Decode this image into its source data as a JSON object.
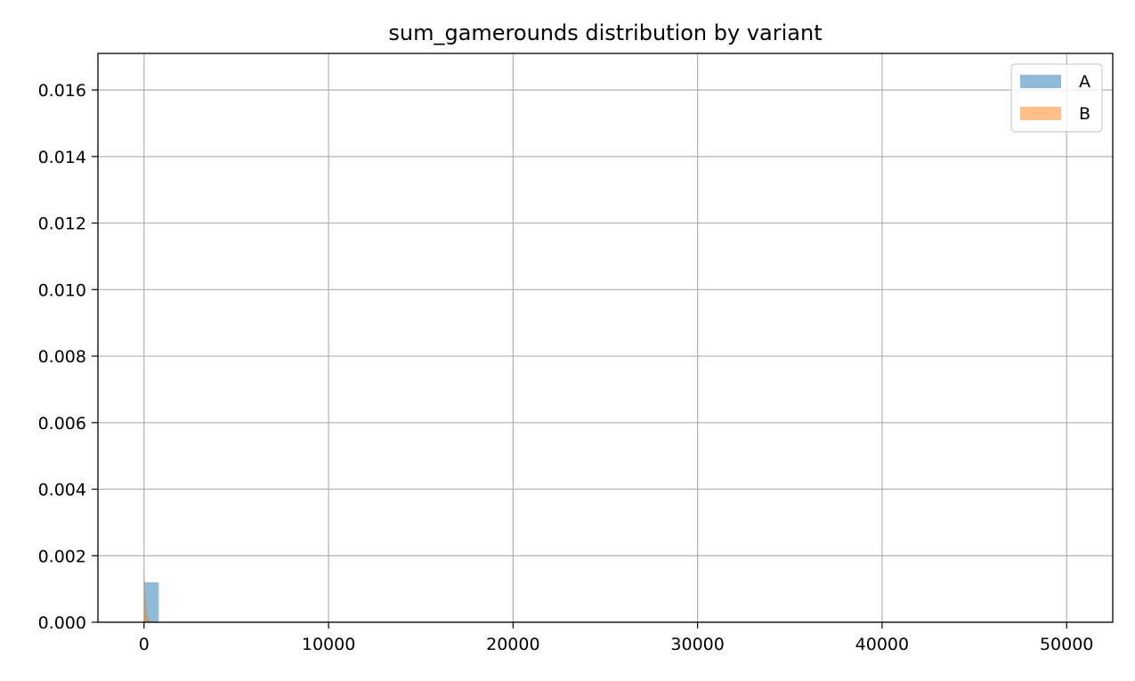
{
  "chart_data": {
    "type": "histogram",
    "title": "sum_gamerounds distribution by variant",
    "xlabel": "",
    "ylabel": "",
    "xlim": [
      -2500,
      52500
    ],
    "ylim": [
      0,
      0.0171
    ],
    "x_ticks": [
      0,
      10000,
      20000,
      30000,
      40000,
      50000
    ],
    "y_ticks": [
      0.0,
      0.002,
      0.004,
      0.006,
      0.008,
      0.01,
      0.012,
      0.014,
      0.016
    ],
    "x_tick_labels": [
      "0",
      "10000",
      "20000",
      "30000",
      "40000",
      "50000"
    ],
    "y_tick_labels": [
      "0.000",
      "0.002",
      "0.004",
      "0.006",
      "0.008",
      "0.010",
      "0.012",
      "0.014",
      "0.016"
    ],
    "grid": true,
    "density": true,
    "legend_position": "top-right",
    "series": [
      {
        "name": "A",
        "color": "#1f77b4",
        "alpha": 0.5,
        "bins": [
          {
            "x0": 0,
            "x1": 800,
            "density": 0.0012
          }
        ]
      },
      {
        "name": "B",
        "color": "#ff7f0e",
        "alpha": 0.5,
        "bins": [
          {
            "x0": 0,
            "x1": 40,
            "density": 0.0013
          },
          {
            "x0": 40,
            "x1": 80,
            "density": 0.0009
          },
          {
            "x0": 80,
            "x1": 120,
            "density": 0.0006
          },
          {
            "x0": 120,
            "x1": 160,
            "density": 0.0004
          },
          {
            "x0": 160,
            "x1": 200,
            "density": 0.00025
          },
          {
            "x0": 200,
            "x1": 240,
            "density": 0.00015
          },
          {
            "x0": 240,
            "x1": 280,
            "density": 0.0001
          },
          {
            "x0": 280,
            "x1": 320,
            "density": 6e-05
          }
        ]
      }
    ]
  }
}
